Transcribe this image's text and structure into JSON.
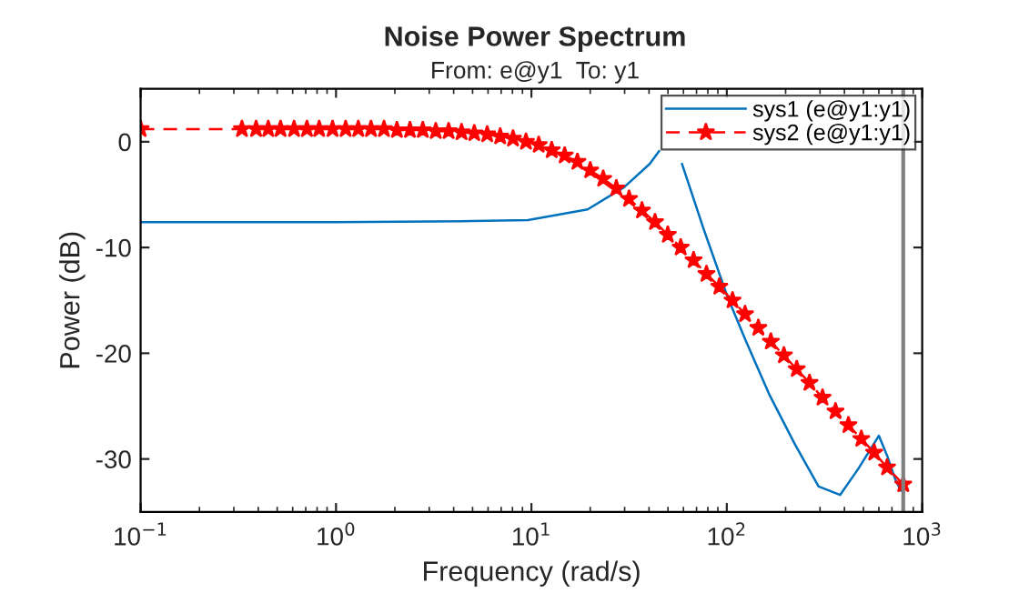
{
  "chart_data": {
    "type": "line",
    "title": "Noise Power Spectrum",
    "subtitle": "From: e@y1  To: y1",
    "xlabel": "Frequency (rad/s)",
    "ylabel": "Power (dB)",
    "log": "x",
    "xlim": [
      0.1,
      1000
    ],
    "ylim": [
      -35,
      5
    ],
    "xticks": [
      {
        "value": 0.1,
        "label": "10$^{−1}$"
      },
      {
        "value": 1,
        "label": "10$^{0}$"
      },
      {
        "value": 10,
        "label": "10$^{1}$"
      },
      {
        "value": 100,
        "label": "10$^{2}$"
      },
      {
        "value": 1000,
        "label": "10$^{3}$"
      }
    ],
    "yticks": [
      -30,
      -20,
      -10,
      0
    ],
    "grid": false,
    "legend": "top right",
    "ref_lines": [
      {
        "axis": "x",
        "value": 800,
        "label": null,
        "color": "#808080",
        "line_style": "solid"
      }
    ],
    "series": [
      {
        "name": "sys1 (e@y1:y1)",
        "color": "#0072bd",
        "line_style": "solid",
        "marker": "none",
        "x": [
          0.1,
          1,
          5,
          9.6,
          19.4,
          29.8,
          40.3,
          45,
          52,
          59,
          76.6,
          101,
          125,
          166,
          223,
          295,
          380,
          472,
          600,
          665,
          730,
          780
        ],
        "values": [
          -7.6,
          -7.6,
          -7.5,
          -7.4,
          -6.4,
          -4.3,
          -2.1,
          -0.9,
          null,
          -2.1,
          -8.4,
          -14.7,
          -18.8,
          -24,
          -28.6,
          -32.6,
          -33.4,
          -30.9,
          -27.8,
          -29.8,
          -32,
          -33
        ]
      },
      {
        "name": "sys2 (e@y1:y1)",
        "color": "#ff0000",
        "line_style": "dashed",
        "marker": "star",
        "x": [
          0.1,
          0.33,
          0.39,
          0.45,
          0.52,
          0.61,
          0.71,
          0.82,
          0.96,
          1.12,
          1.3,
          1.51,
          1.76,
          2.05,
          2.39,
          2.78,
          3.24,
          3.77,
          4.39,
          5.1,
          5.94,
          6.92,
          8.05,
          9.38,
          10.9,
          12.7,
          14.8,
          17.2,
          20,
          23.3,
          27.2,
          31.6,
          36.8,
          42.9,
          49.9,
          58.1,
          67.6,
          78.7,
          91.6,
          107,
          124,
          145,
          168,
          196,
          228,
          265,
          309,
          360,
          419,
          488,
          568,
          661,
          800
        ],
        "values": [
          1.2,
          1.2,
          1.2,
          1.2,
          1.2,
          1.2,
          1.2,
          1.2,
          1.2,
          1.2,
          1.2,
          1.2,
          1.2,
          1.1,
          1.1,
          1.1,
          1.0,
          1.0,
          0.9,
          0.8,
          0.7,
          0.5,
          0.3,
          0.0,
          -0.3,
          -0.8,
          -1.3,
          -1.9,
          -2.7,
          -3.5,
          -4.4,
          -5.4,
          -6.5,
          -7.6,
          -8.8,
          -10.0,
          -11.2,
          -12.5,
          -13.7,
          -15.0,
          -16.3,
          -17.6,
          -18.9,
          -20.2,
          -21.5,
          -22.8,
          -24.2,
          -25.5,
          -26.8,
          -28.1,
          -29.4,
          -30.8,
          -32.4
        ]
      }
    ]
  }
}
